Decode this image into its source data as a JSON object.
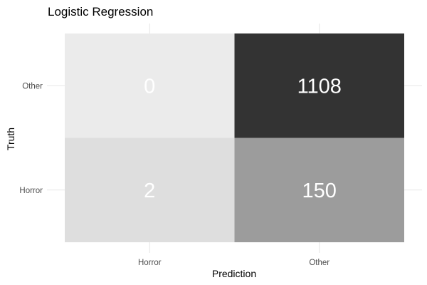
{
  "chart_data": {
    "type": "heatmap",
    "title": "Logistic Regression",
    "xlabel": "Prediction",
    "ylabel": "Truth",
    "x_categories": [
      "Horror",
      "Other"
    ],
    "y_categories": [
      "Horror",
      "Other"
    ],
    "cells": [
      {
        "x": "Horror",
        "y": "Other",
        "value": 0,
        "label": "0"
      },
      {
        "x": "Other",
        "y": "Other",
        "value": 1108,
        "label": "1108"
      },
      {
        "x": "Horror",
        "y": "Horror",
        "value": 2,
        "label": "2"
      },
      {
        "x": "Other",
        "y": "Horror",
        "value": 150,
        "label": "150"
      }
    ],
    "color_scale": {
      "low": "#ebebeb",
      "high": "#333333"
    },
    "label_color": "#ffffff",
    "grid": true,
    "legend": "none"
  }
}
